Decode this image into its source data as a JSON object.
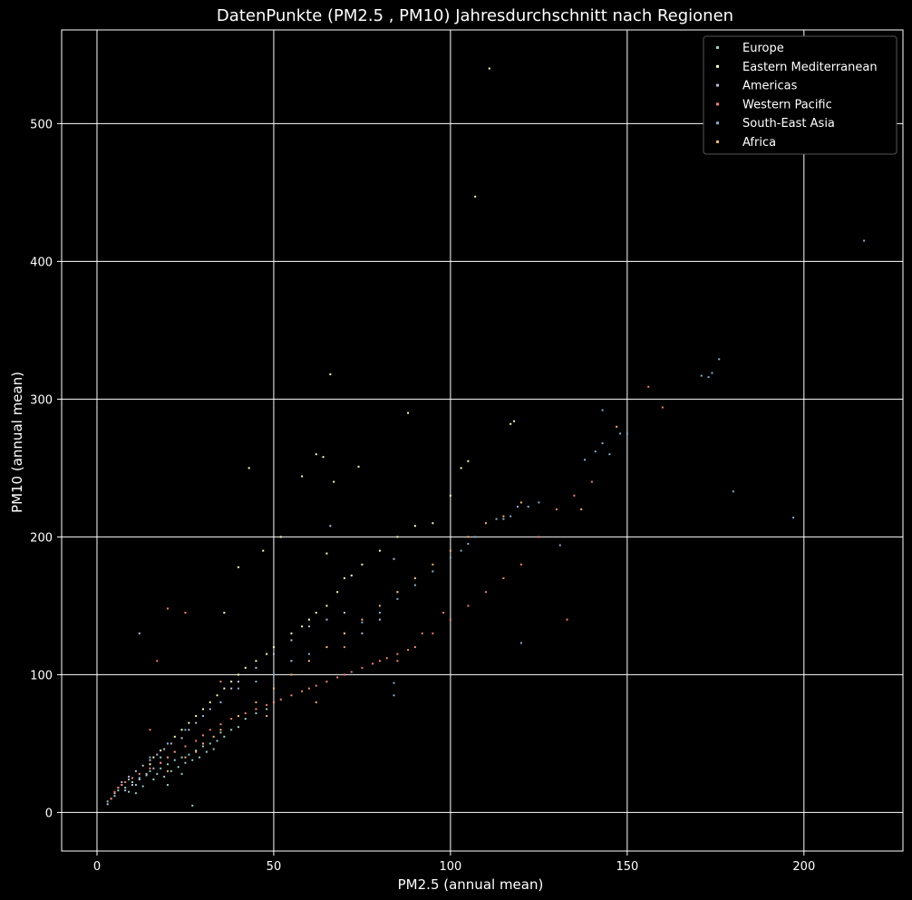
{
  "chart_data": {
    "type": "scatter",
    "title": "DatenPunkte (PM2.5 , PM10) Jahresdurchschnitt nach Regionen",
    "xlabel": "PM2.5 (annual mean)",
    "ylabel": "PM10 (annual mean)",
    "xlim": [
      -10,
      228
    ],
    "ylim": [
      -28,
      568
    ],
    "xticks": [
      0,
      50,
      100,
      150,
      200
    ],
    "yticks": [
      0,
      100,
      200,
      300,
      400,
      500
    ],
    "grid": true,
    "legend_position": "top-right",
    "series": [
      {
        "name": "Europe",
        "color": "#8dd3c7",
        "points": [
          [
            3,
            8
          ],
          [
            5,
            12
          ],
          [
            6,
            16
          ],
          [
            8,
            18
          ],
          [
            9,
            15
          ],
          [
            10,
            22
          ],
          [
            11,
            20
          ],
          [
            12,
            25
          ],
          [
            13,
            19
          ],
          [
            14,
            27
          ],
          [
            15,
            30
          ],
          [
            16,
            24
          ],
          [
            17,
            28
          ],
          [
            18,
            32
          ],
          [
            19,
            26
          ],
          [
            20,
            35
          ],
          [
            21,
            30
          ],
          [
            22,
            38
          ],
          [
            23,
            33
          ],
          [
            24,
            40
          ],
          [
            25,
            36
          ],
          [
            26,
            42
          ],
          [
            27,
            38
          ],
          [
            28,
            45
          ],
          [
            29,
            40
          ],
          [
            30,
            48
          ],
          [
            31,
            44
          ],
          [
            32,
            50
          ],
          [
            33,
            46
          ],
          [
            34,
            52
          ],
          [
            35,
            58
          ],
          [
            36,
            55
          ],
          [
            38,
            60
          ],
          [
            40,
            62
          ],
          [
            42,
            68
          ],
          [
            45,
            72
          ],
          [
            48,
            75
          ],
          [
            50,
            80
          ],
          [
            27,
            5
          ],
          [
            20,
            20
          ],
          [
            18,
            40
          ],
          [
            24,
            28
          ],
          [
            7,
            20
          ],
          [
            9,
            24
          ],
          [
            11,
            14
          ]
        ]
      },
      {
        "name": "Eastern Mediterranean",
        "color": "#ffffb3",
        "points": [
          [
            111,
            540
          ],
          [
            107,
            447
          ],
          [
            88,
            290
          ],
          [
            66,
            318
          ],
          [
            43,
            250
          ],
          [
            58,
            244
          ],
          [
            62,
            260
          ],
          [
            64,
            258
          ],
          [
            67,
            240
          ],
          [
            74,
            251
          ],
          [
            117,
            282
          ],
          [
            118,
            284
          ],
          [
            103,
            250
          ],
          [
            105,
            255
          ],
          [
            100,
            230
          ],
          [
            95,
            210
          ],
          [
            90,
            208
          ],
          [
            85,
            200
          ],
          [
            80,
            190
          ],
          [
            75,
            180
          ],
          [
            70,
            170
          ],
          [
            68,
            160
          ],
          [
            65,
            150
          ],
          [
            62,
            145
          ],
          [
            60,
            140
          ],
          [
            58,
            135
          ],
          [
            55,
            130
          ],
          [
            50,
            120
          ],
          [
            48,
            115
          ],
          [
            45,
            110
          ],
          [
            42,
            105
          ],
          [
            40,
            100
          ],
          [
            38,
            95
          ],
          [
            36,
            90
          ],
          [
            34,
            85
          ],
          [
            32,
            80
          ],
          [
            30,
            75
          ],
          [
            28,
            70
          ],
          [
            26,
            65
          ],
          [
            24,
            60
          ],
          [
            22,
            55
          ],
          [
            20,
            50
          ],
          [
            18,
            45
          ],
          [
            16,
            40
          ],
          [
            15,
            35
          ],
          [
            52,
            200
          ],
          [
            65,
            188
          ],
          [
            72,
            172
          ],
          [
            47,
            190
          ],
          [
            36,
            145
          ],
          [
            40,
            178
          ]
        ]
      },
      {
        "name": "Americas",
        "color": "#bebada",
        "points": [
          [
            3,
            6
          ],
          [
            4,
            10
          ],
          [
            5,
            14
          ],
          [
            6,
            18
          ],
          [
            7,
            22
          ],
          [
            8,
            16
          ],
          [
            9,
            26
          ],
          [
            10,
            20
          ],
          [
            11,
            30
          ],
          [
            12,
            24
          ],
          [
            13,
            34
          ],
          [
            14,
            28
          ],
          [
            15,
            38
          ],
          [
            16,
            32
          ],
          [
            17,
            42
          ],
          [
            18,
            36
          ],
          [
            19,
            46
          ],
          [
            20,
            40
          ],
          [
            21,
            50
          ],
          [
            22,
            44
          ],
          [
            24,
            54
          ],
          [
            26,
            60
          ],
          [
            28,
            65
          ],
          [
            30,
            70
          ],
          [
            32,
            75
          ],
          [
            35,
            80
          ],
          [
            38,
            90
          ],
          [
            40,
            95
          ],
          [
            45,
            105
          ],
          [
            50,
            115
          ],
          [
            55,
            125
          ],
          [
            60,
            135
          ],
          [
            65,
            140
          ],
          [
            70,
            145
          ],
          [
            75,
            130
          ],
          [
            80,
            140
          ],
          [
            85,
            160
          ],
          [
            90,
            170
          ],
          [
            12,
            130
          ],
          [
            66,
            208
          ],
          [
            84,
            184
          ]
        ]
      },
      {
        "name": "Western Pacific",
        "color": "#fb8072",
        "points": [
          [
            4,
            10
          ],
          [
            5,
            15
          ],
          [
            6,
            18
          ],
          [
            7,
            20
          ],
          [
            8,
            22
          ],
          [
            10,
            25
          ],
          [
            12,
            28
          ],
          [
            15,
            32
          ],
          [
            18,
            36
          ],
          [
            20,
            40
          ],
          [
            22,
            44
          ],
          [
            25,
            48
          ],
          [
            28,
            52
          ],
          [
            30,
            56
          ],
          [
            32,
            60
          ],
          [
            35,
            64
          ],
          [
            38,
            68
          ],
          [
            40,
            70
          ],
          [
            42,
            72
          ],
          [
            45,
            75
          ],
          [
            48,
            78
          ],
          [
            50,
            80
          ],
          [
            52,
            82
          ],
          [
            55,
            85
          ],
          [
            58,
            88
          ],
          [
            60,
            90
          ],
          [
            62,
            92
          ],
          [
            65,
            95
          ],
          [
            68,
            98
          ],
          [
            70,
            100
          ],
          [
            72,
            102
          ],
          [
            75,
            105
          ],
          [
            78,
            108
          ],
          [
            80,
            110
          ],
          [
            82,
            112
          ],
          [
            85,
            115
          ],
          [
            88,
            118
          ],
          [
            90,
            120
          ],
          [
            95,
            130
          ],
          [
            100,
            140
          ],
          [
            105,
            150
          ],
          [
            110,
            160
          ],
          [
            115,
            170
          ],
          [
            120,
            180
          ],
          [
            125,
            200
          ],
          [
            130,
            220
          ],
          [
            135,
            230
          ],
          [
            140,
            240
          ],
          [
            156,
            309
          ],
          [
            160,
            294
          ],
          [
            133,
            140
          ],
          [
            17,
            110
          ],
          [
            20,
            148
          ],
          [
            25,
            145
          ],
          [
            15,
            60
          ],
          [
            35,
            95
          ],
          [
            55,
            110
          ],
          [
            70,
            120
          ],
          [
            85,
            110
          ],
          [
            92,
            130
          ],
          [
            98,
            145
          ]
        ]
      },
      {
        "name": "South-East Asia",
        "color": "#80b1d3",
        "points": [
          [
            217,
            415
          ],
          [
            176,
            329
          ],
          [
            174,
            319
          ],
          [
            171,
            317
          ],
          [
            173,
            316
          ],
          [
            180,
            233
          ],
          [
            197,
            214
          ],
          [
            150,
            275
          ],
          [
            148,
            275
          ],
          [
            145,
            260
          ],
          [
            143,
            268
          ],
          [
            143,
            292
          ],
          [
            141,
            262
          ],
          [
            138,
            256
          ],
          [
            131,
            194
          ],
          [
            125,
            225
          ],
          [
            122,
            222
          ],
          [
            119,
            222
          ],
          [
            117,
            215
          ],
          [
            115,
            213
          ],
          [
            113,
            213
          ],
          [
            120,
            123
          ],
          [
            107,
            200
          ],
          [
            105,
            195
          ],
          [
            103,
            190
          ],
          [
            100,
            185
          ],
          [
            95,
            175
          ],
          [
            90,
            165
          ],
          [
            85,
            155
          ],
          [
            84,
            85
          ],
          [
            84,
            94
          ],
          [
            80,
            145
          ],
          [
            75,
            138
          ],
          [
            70,
            130
          ],
          [
            65,
            120
          ],
          [
            60,
            115
          ],
          [
            55,
            110
          ],
          [
            50,
            100
          ],
          [
            45,
            95
          ],
          [
            40,
            90
          ],
          [
            35,
            80
          ],
          [
            30,
            70
          ],
          [
            25,
            60
          ],
          [
            20,
            50
          ],
          [
            15,
            40
          ]
        ]
      },
      {
        "name": "Africa",
        "color": "#fdb462",
        "points": [
          [
            20,
            30
          ],
          [
            25,
            40
          ],
          [
            30,
            50
          ],
          [
            35,
            60
          ],
          [
            40,
            70
          ],
          [
            45,
            80
          ],
          [
            50,
            90
          ],
          [
            55,
            100
          ],
          [
            60,
            110
          ],
          [
            65,
            120
          ],
          [
            70,
            130
          ],
          [
            75,
            140
          ],
          [
            80,
            150
          ],
          [
            85,
            160
          ],
          [
            90,
            170
          ],
          [
            95,
            180
          ],
          [
            100,
            190
          ],
          [
            105,
            200
          ],
          [
            110,
            210
          ],
          [
            115,
            215
          ],
          [
            120,
            225
          ],
          [
            137,
            220
          ],
          [
            147,
            280
          ],
          [
            62,
            80
          ],
          [
            48,
            70
          ],
          [
            33,
            55
          ],
          [
            28,
            44
          ]
        ]
      }
    ]
  }
}
